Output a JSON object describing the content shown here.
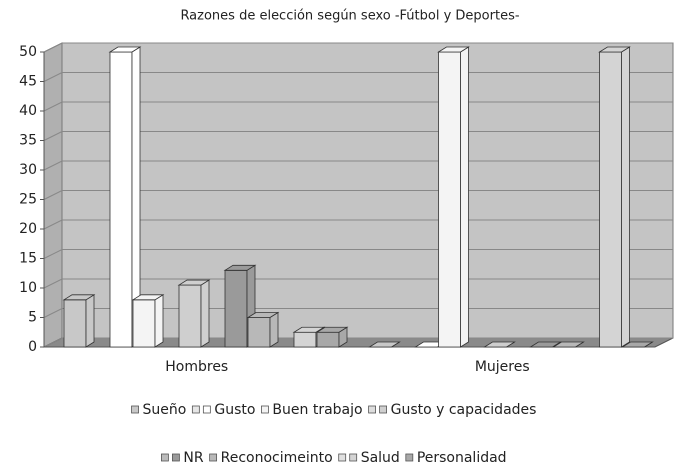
{
  "chart_data": {
    "type": "bar3d",
    "title": "Razones de elección según sexo -Fútbol  y Deportes-",
    "categories": [
      "Hombres",
      "Mujeres"
    ],
    "series": [
      {
        "name": "Sueño",
        "color": "#c8c8c8",
        "values": [
          8,
          0
        ]
      },
      {
        "name": null,
        "color": "#e6e6e6",
        "values": [
          null,
          null
        ]
      },
      {
        "name": "Gusto",
        "color": "#ffffff",
        "values": [
          50,
          0
        ]
      },
      {
        "name": "Buen trabajo",
        "color": "#f4f4f4",
        "values": [
          8,
          50
        ]
      },
      {
        "name": null,
        "color": "#dddddd",
        "values": [
          null,
          null
        ]
      },
      {
        "name": "Gusto y capacidades",
        "color": "#cfcfcf",
        "values": [
          10.5,
          0
        ]
      },
      {
        "name": null,
        "color": "#bbbbbb",
        "values": [
          null,
          null
        ]
      },
      {
        "name": "NR",
        "color": "#9a9a9a",
        "values": [
          13,
          0
        ]
      },
      {
        "name": "Reconocimeinto",
        "color": "#b8b8b8",
        "values": [
          5,
          0
        ]
      },
      {
        "name": null,
        "color": "#e0e0e0",
        "values": [
          null,
          null
        ]
      },
      {
        "name": "Salud",
        "color": "#d4d4d4",
        "values": [
          2.5,
          50
        ]
      },
      {
        "name": "Personalidad",
        "color": "#a8a8a8",
        "values": [
          2.5,
          0
        ]
      }
    ],
    "ylim": [
      0,
      50
    ],
    "yticks": [
      0,
      5,
      10,
      15,
      20,
      25,
      30,
      35,
      40,
      45,
      50
    ],
    "grid": true
  }
}
